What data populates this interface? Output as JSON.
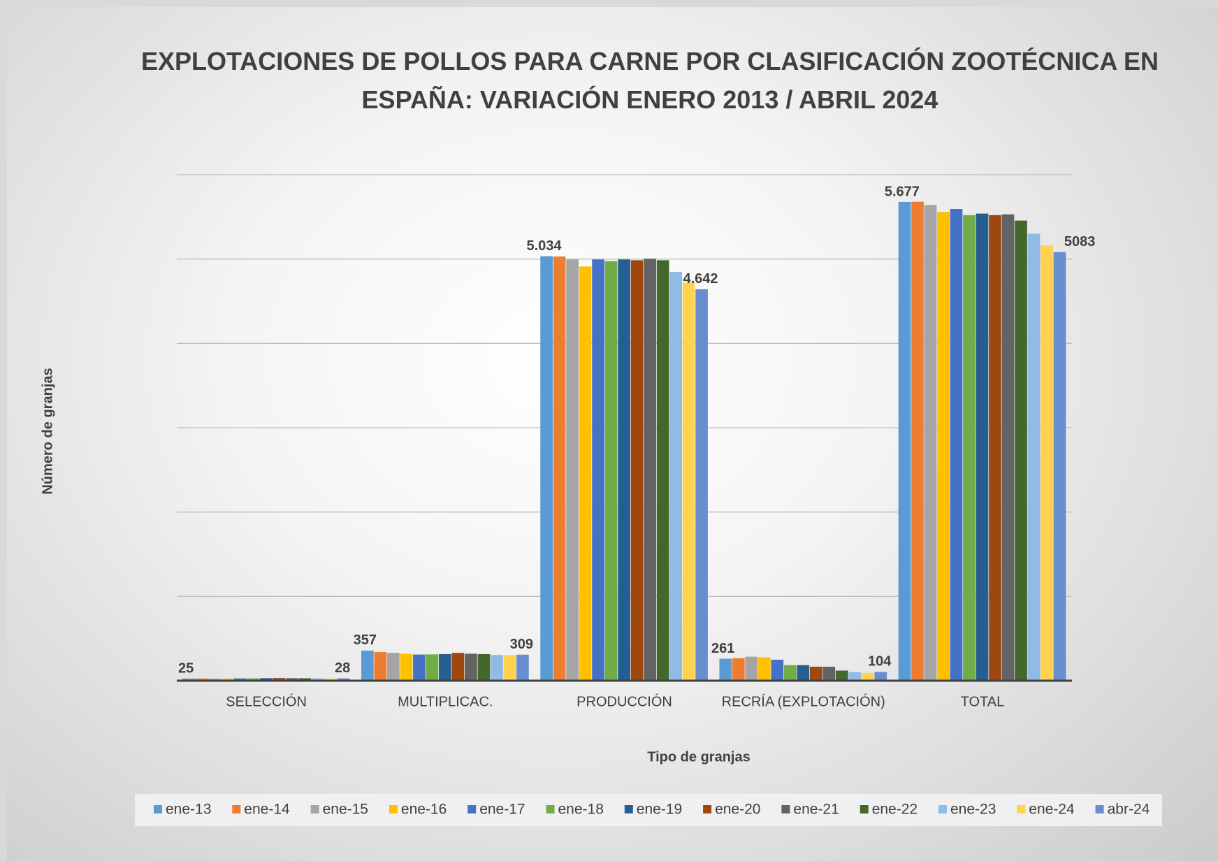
{
  "chart_data": {
    "type": "bar",
    "title": "EXPLOTACIONES DE POLLOS PARA CARNE POR CLASIFICACIÓN ZOOTÉCNICA EN ESPAÑA: VARIACIÓN ENERO 2013 / ABRIL 2024",
    "x_label": "Tipo de granjas",
    "y_label": "Número de granjas",
    "categories": [
      "SELECCIÓN",
      "MULTIPLICAC.",
      "PRODUCCIÓN",
      "RECRÍA (EXPLOTACIÓN)",
      "TOTAL"
    ],
    "series": [
      {
        "name": "ene-13",
        "color": "#5b9bd5",
        "values": [
          25,
          357,
          5034,
          261,
          5677
        ],
        "value_labels": [
          "25",
          "357",
          "5.034",
          "261",
          "5.677"
        ]
      },
      {
        "name": "ene-14",
        "color": "#ed7d31",
        "values": [
          26,
          340,
          5030,
          267,
          5680
        ]
      },
      {
        "name": "ene-15",
        "color": "#a5a5a5",
        "values": [
          24,
          330,
          4995,
          285,
          5641
        ]
      },
      {
        "name": "ene-16",
        "color": "#ffc000",
        "values": [
          25,
          320,
          4912,
          276,
          5558
        ]
      },
      {
        "name": "ene-17",
        "color": "#4472c4",
        "values": [
          27,
          310,
          4995,
          249,
          5594
        ]
      },
      {
        "name": "ene-18",
        "color": "#70ad47",
        "values": [
          28,
          312,
          4977,
          184,
          5521
        ]
      },
      {
        "name": "ene-19",
        "color": "#255e91",
        "values": [
          30,
          315,
          4995,
          184,
          5539
        ]
      },
      {
        "name": "ene-20",
        "color": "#9e480e",
        "values": [
          32,
          330,
          4986,
          166,
          5521
        ]
      },
      {
        "name": "ene-21",
        "color": "#636363",
        "values": [
          30,
          320,
          5005,
          166,
          5530
        ]
      },
      {
        "name": "ene-22",
        "color": "#43682b",
        "values": [
          29,
          315,
          4986,
          120,
          5456
        ]
      },
      {
        "name": "ene-23",
        "color": "#8fbbe6",
        "values": [
          27,
          305,
          4848,
          101,
          5300
        ]
      },
      {
        "name": "ene-24",
        "color": "#ffd34d",
        "values": [
          26,
          305,
          4719,
          92,
          5161
        ]
      },
      {
        "name": "abr-24",
        "color": "#698ed0",
        "values": [
          28,
          309,
          4642,
          104,
          5083
        ],
        "value_labels": [
          "28",
          "309",
          "4.642",
          "104",
          "5083"
        ]
      }
    ],
    "ylim": [
      0,
      6000
    ],
    "yticks": [
      0,
      1000,
      2000,
      3000,
      4000,
      5000,
      6000
    ],
    "grid": true,
    "legend": "bottom"
  }
}
